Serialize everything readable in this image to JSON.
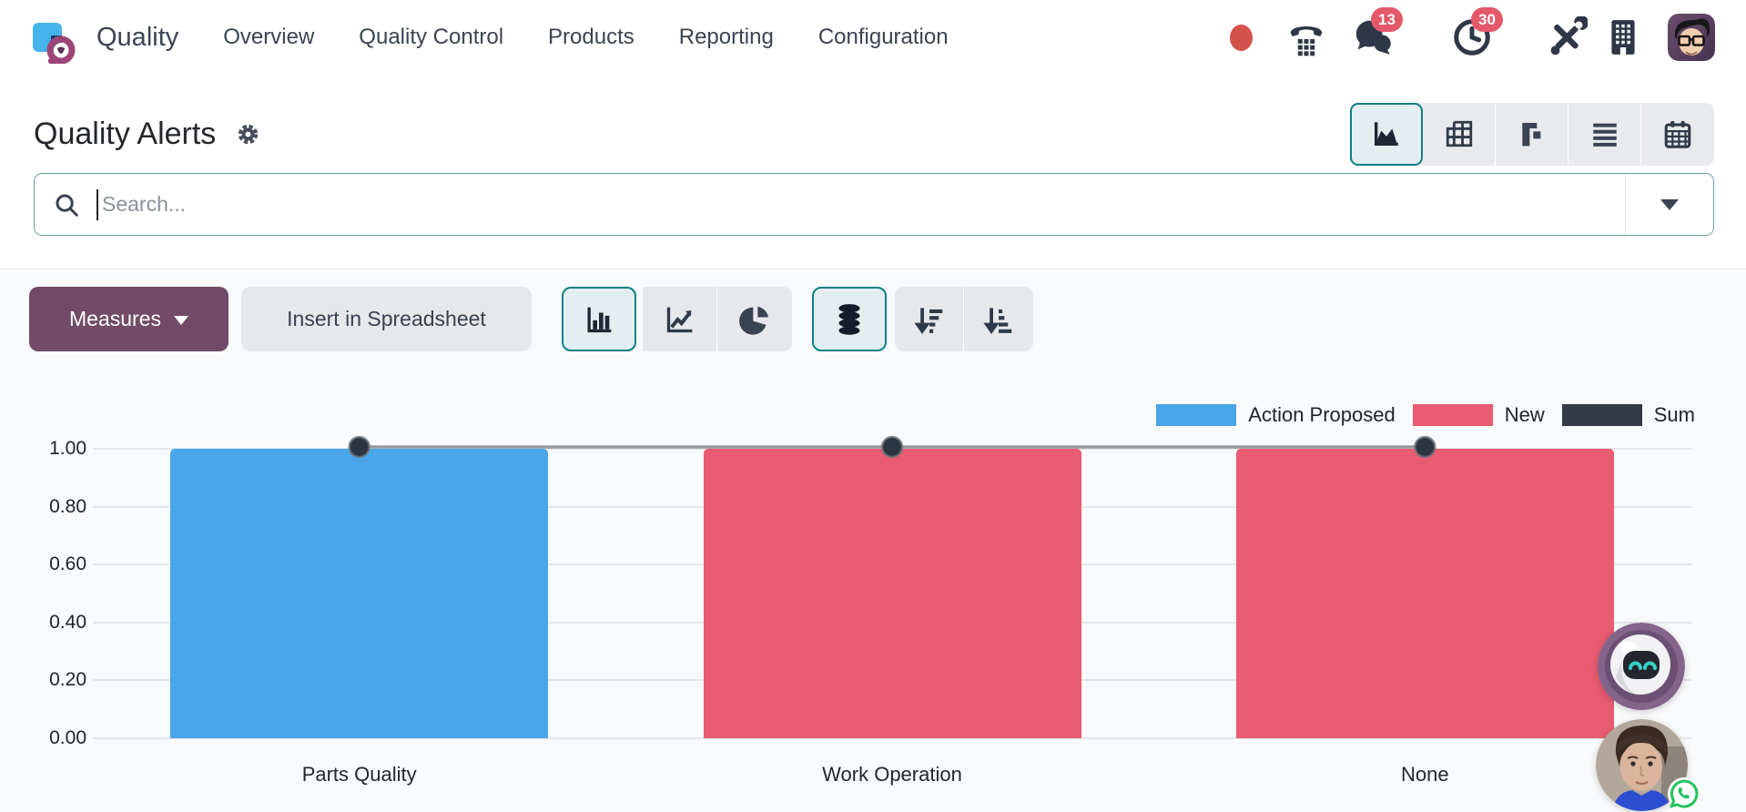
{
  "navbar": {
    "app_name": "Quality",
    "menu_items": [
      "Overview",
      "Quality Control",
      "Products",
      "Reporting",
      "Configuration"
    ],
    "messages_badge": "13",
    "activities_badge": "30",
    "icons": [
      "status-dot",
      "phone-icon",
      "messages-icon",
      "activities-clock-icon",
      "tools-icon",
      "company-building-icon",
      "user-avatar"
    ]
  },
  "control_panel": {
    "title": "Quality Alerts",
    "view_switcher_icons": [
      "graph-view-icon",
      "pivot-view-icon",
      "kanban-view-icon",
      "list-view-icon",
      "calendar-view-icon"
    ],
    "active_view": "graph"
  },
  "search": {
    "placeholder": "Search..."
  },
  "toolbar": {
    "measures_label": "Measures",
    "insert_spreadsheet_label": "Insert in Spreadsheet",
    "chart_type_icons": [
      "bar-chart-icon",
      "line-chart-icon",
      "pie-chart-icon"
    ],
    "active_chart_type": "bar",
    "stacked_active": true,
    "sort_icons": [
      "sort-descending-icon",
      "sort-ascending-icon"
    ]
  },
  "colors": {
    "accent_teal": "#0c8087",
    "primary_purple": "#714B67",
    "badge_red": "#e4586a",
    "status_dot_red": "#d3524b"
  },
  "chart_data": {
    "type": "bar",
    "stacked": true,
    "title": "",
    "categories": [
      "Parts Quality",
      "Work Operation",
      "None"
    ],
    "series": [
      {
        "name": "Action Proposed",
        "type": "bar",
        "color": "#4aa6eb",
        "values": [
          1,
          0,
          0
        ]
      },
      {
        "name": "New",
        "type": "bar",
        "color": "#e85b70",
        "values": [
          0,
          1,
          1
        ]
      },
      {
        "name": "Sum",
        "type": "line",
        "color": "#343a46",
        "line_color": "#97999c",
        "values": [
          1,
          1,
          1
        ]
      }
    ],
    "xlabel": "",
    "ylabel": "",
    "ylim": [
      0,
      1.0
    ],
    "yticks": [
      0,
      0.2,
      0.4,
      0.6,
      0.8,
      1.0
    ],
    "ytick_labels": [
      "0.00",
      "0.20",
      "0.40",
      "0.60",
      "0.80",
      "1.00"
    ],
    "grid": true,
    "legend_position": "top-right"
  }
}
